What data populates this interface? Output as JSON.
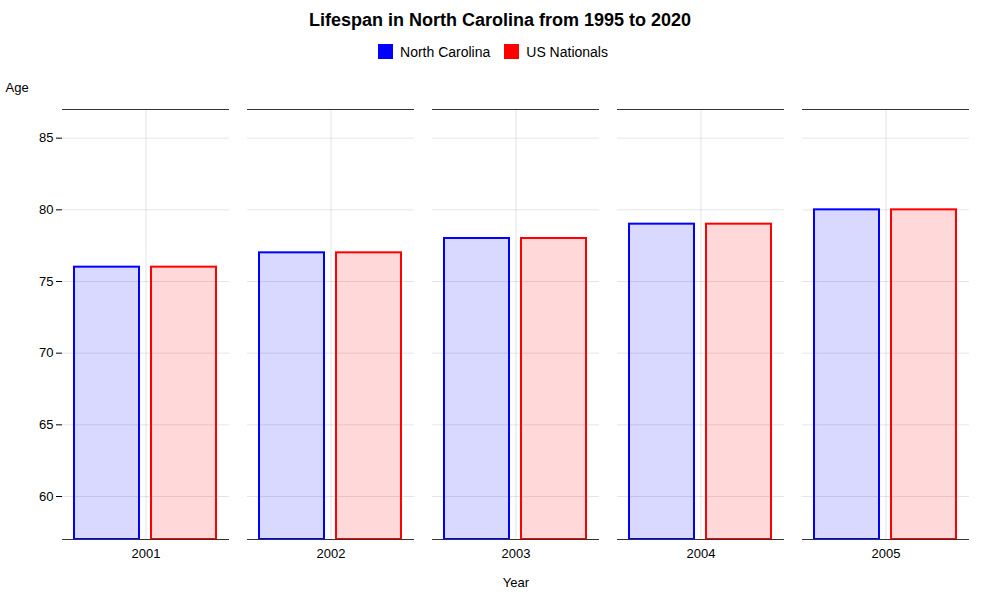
{
  "chart_data": {
    "type": "bar",
    "title": "Lifespan in North Carolina from 1995 to 2020",
    "xlabel": "Year",
    "ylabel": "Age",
    "categories": [
      "2001",
      "2002",
      "2003",
      "2004",
      "2005"
    ],
    "series": [
      {
        "name": "North Carolina",
        "color": "#0000ff",
        "values": [
          76.0,
          77.0,
          78.0,
          79.0,
          80.0
        ]
      },
      {
        "name": "US Nationals",
        "color": "#ff0000",
        "values": [
          76.0,
          77.0,
          78.0,
          79.0,
          80.0
        ]
      }
    ],
    "ylim": [
      57,
      87
    ],
    "yticks": [
      60,
      65,
      70,
      75,
      80,
      85
    ],
    "grid": true,
    "legend": "top"
  }
}
